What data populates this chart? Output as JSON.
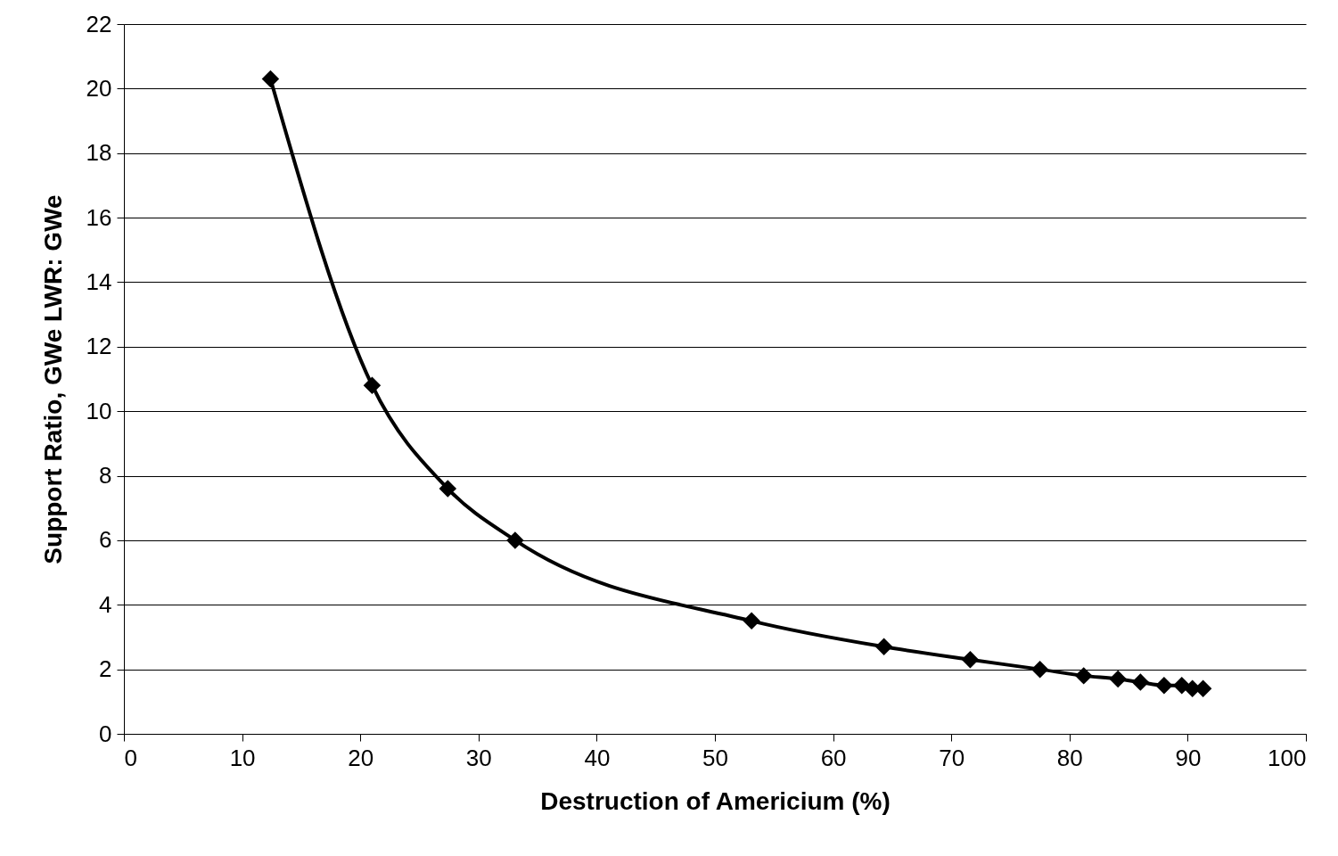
{
  "chart_data": {
    "type": "line",
    "xlabel": "Destruction of Americium (%)",
    "ylabel": "Support Ratio, GWe LWR: GWe",
    "x": [
      12.4,
      21.0,
      27.4,
      33.1,
      53.1,
      64.3,
      71.6,
      77.5,
      81.2,
      84.1,
      86.0,
      88.0,
      89.5,
      90.4,
      91.3
    ],
    "series": [
      {
        "color": "#000000",
        "values": [
          20.3,
          10.8,
          7.6,
          6.0,
          3.5,
          2.7,
          2.3,
          2.0,
          1.8,
          1.7,
          1.6,
          1.5,
          1.5,
          1.4,
          1.4
        ]
      }
    ],
    "xlim": [
      0,
      100
    ],
    "xticks": [
      0,
      10,
      20,
      30,
      40,
      50,
      60,
      70,
      80,
      90,
      100
    ],
    "ylim": [
      0,
      22
    ],
    "yticks": [
      0,
      2,
      4,
      6,
      8,
      10,
      12,
      14,
      16,
      18,
      20,
      22
    ],
    "grid": "y",
    "marker": "diamond",
    "line_style": "solid"
  }
}
